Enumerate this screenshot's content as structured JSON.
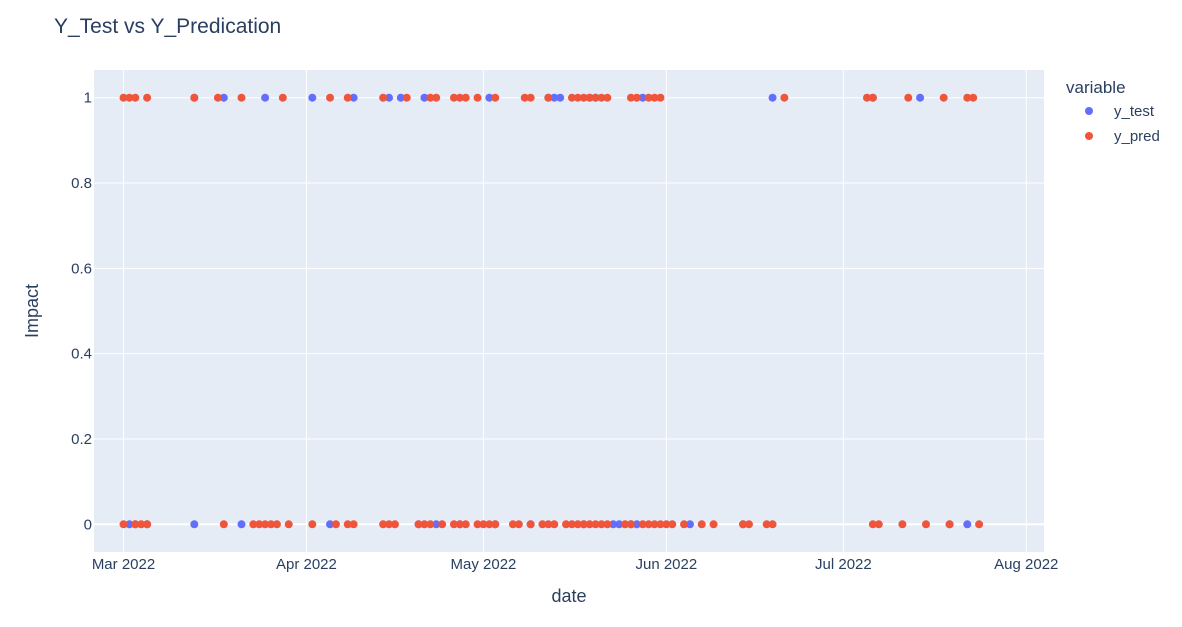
{
  "chart_data": {
    "type": "scatter",
    "title": "Y_Test vs Y_Predication",
    "xlabel": "date",
    "ylabel": "Impact",
    "xlim": [
      "2022-02-24",
      "2022-08-04"
    ],
    "ylim": [
      -0.065,
      1.065
    ],
    "x_ticks": [
      {
        "date": "2022-03-01",
        "label": "Mar 2022"
      },
      {
        "date": "2022-04-01",
        "label": "Apr 2022"
      },
      {
        "date": "2022-05-01",
        "label": "May 2022"
      },
      {
        "date": "2022-06-01",
        "label": "Jun 2022"
      },
      {
        "date": "2022-07-01",
        "label": "Jul 2022"
      },
      {
        "date": "2022-08-01",
        "label": "Aug 2022"
      }
    ],
    "y_ticks": [
      {
        "value": 0,
        "label": "0"
      },
      {
        "value": 0.2,
        "label": "0.2"
      },
      {
        "value": 0.4,
        "label": "0.4"
      },
      {
        "value": 0.6,
        "label": "0.6"
      },
      {
        "value": 0.8,
        "label": "0.8"
      },
      {
        "value": 1,
        "label": "1"
      }
    ],
    "grid": true,
    "legend": {
      "title": "variable",
      "placement": "top-right"
    },
    "series": [
      {
        "name": "y_test",
        "color": "#636efa",
        "points": [
          {
            "x": "2022-03-02",
            "y": 0
          },
          {
            "x": "2022-03-03",
            "y": 0
          },
          {
            "x": "2022-03-05",
            "y": 0
          },
          {
            "x": "2022-03-13",
            "y": 1
          },
          {
            "x": "2022-03-13",
            "y": 0
          },
          {
            "x": "2022-03-18",
            "y": 1
          },
          {
            "x": "2022-03-21",
            "y": 0
          },
          {
            "x": "2022-03-25",
            "y": 1
          },
          {
            "x": "2022-04-02",
            "y": 1
          },
          {
            "x": "2022-04-05",
            "y": 0
          },
          {
            "x": "2022-04-09",
            "y": 1
          },
          {
            "x": "2022-04-15",
            "y": 1
          },
          {
            "x": "2022-04-17",
            "y": 1
          },
          {
            "x": "2022-04-20",
            "y": 0
          },
          {
            "x": "2022-04-21",
            "y": 1
          },
          {
            "x": "2022-04-23",
            "y": 0
          },
          {
            "x": "2022-04-27",
            "y": 0
          },
          {
            "x": "2022-05-02",
            "y": 1
          },
          {
            "x": "2022-05-03",
            "y": 0
          },
          {
            "x": "2022-05-09",
            "y": 0
          },
          {
            "x": "2022-05-12",
            "y": 1
          },
          {
            "x": "2022-05-13",
            "y": 1
          },
          {
            "x": "2022-05-14",
            "y": 1
          },
          {
            "x": "2022-05-18",
            "y": 0
          },
          {
            "x": "2022-05-19",
            "y": 1
          },
          {
            "x": "2022-05-20",
            "y": 1
          },
          {
            "x": "2022-05-23",
            "y": 0
          },
          {
            "x": "2022-05-24",
            "y": 0
          },
          {
            "x": "2022-05-26",
            "y": 0
          },
          {
            "x": "2022-05-27",
            "y": 0
          },
          {
            "x": "2022-05-28",
            "y": 1
          },
          {
            "x": "2022-06-05",
            "y": 0
          },
          {
            "x": "2022-06-14",
            "y": 0
          },
          {
            "x": "2022-06-19",
            "y": 1
          },
          {
            "x": "2022-07-06",
            "y": 1
          },
          {
            "x": "2022-07-14",
            "y": 1
          },
          {
            "x": "2022-07-19",
            "y": 0
          },
          {
            "x": "2022-07-22",
            "y": 0
          }
        ]
      },
      {
        "name": "y_pred",
        "color": "#ef553b",
        "points": [
          {
            "x": "2022-03-01",
            "y": 1
          },
          {
            "x": "2022-03-02",
            "y": 1
          },
          {
            "x": "2022-03-03",
            "y": 1
          },
          {
            "x": "2022-03-05",
            "y": 1
          },
          {
            "x": "2022-03-13",
            "y": 1
          },
          {
            "x": "2022-03-17",
            "y": 1
          },
          {
            "x": "2022-03-21",
            "y": 1
          },
          {
            "x": "2022-03-28",
            "y": 1
          },
          {
            "x": "2022-04-05",
            "y": 1
          },
          {
            "x": "2022-04-08",
            "y": 1
          },
          {
            "x": "2022-04-14",
            "y": 1
          },
          {
            "x": "2022-04-18",
            "y": 1
          },
          {
            "x": "2022-04-22",
            "y": 1
          },
          {
            "x": "2022-04-23",
            "y": 1
          },
          {
            "x": "2022-04-26",
            "y": 1
          },
          {
            "x": "2022-04-27",
            "y": 1
          },
          {
            "x": "2022-04-28",
            "y": 1
          },
          {
            "x": "2022-04-30",
            "y": 1
          },
          {
            "x": "2022-05-03",
            "y": 1
          },
          {
            "x": "2022-05-08",
            "y": 1
          },
          {
            "x": "2022-05-09",
            "y": 1
          },
          {
            "x": "2022-05-12",
            "y": 1
          },
          {
            "x": "2022-05-16",
            "y": 1
          },
          {
            "x": "2022-05-17",
            "y": 1
          },
          {
            "x": "2022-05-18",
            "y": 1
          },
          {
            "x": "2022-05-19",
            "y": 1
          },
          {
            "x": "2022-05-20",
            "y": 1
          },
          {
            "x": "2022-05-21",
            "y": 1
          },
          {
            "x": "2022-05-22",
            "y": 1
          },
          {
            "x": "2022-05-26",
            "y": 1
          },
          {
            "x": "2022-05-27",
            "y": 1
          },
          {
            "x": "2022-05-29",
            "y": 1
          },
          {
            "x": "2022-05-30",
            "y": 1
          },
          {
            "x": "2022-05-31",
            "y": 1
          },
          {
            "x": "2022-06-21",
            "y": 1
          },
          {
            "x": "2022-07-05",
            "y": 1
          },
          {
            "x": "2022-07-06",
            "y": 1
          },
          {
            "x": "2022-07-12",
            "y": 1
          },
          {
            "x": "2022-07-18",
            "y": 1
          },
          {
            "x": "2022-07-22",
            "y": 1
          },
          {
            "x": "2022-07-23",
            "y": 1
          },
          {
            "x": "2022-03-01",
            "y": 0
          },
          {
            "x": "2022-03-03",
            "y": 0
          },
          {
            "x": "2022-03-04",
            "y": 0
          },
          {
            "x": "2022-03-05",
            "y": 0
          },
          {
            "x": "2022-03-18",
            "y": 0
          },
          {
            "x": "2022-03-23",
            "y": 0
          },
          {
            "x": "2022-03-24",
            "y": 0
          },
          {
            "x": "2022-03-25",
            "y": 0
          },
          {
            "x": "2022-03-26",
            "y": 0
          },
          {
            "x": "2022-03-27",
            "y": 0
          },
          {
            "x": "2022-03-29",
            "y": 0
          },
          {
            "x": "2022-04-02",
            "y": 0
          },
          {
            "x": "2022-04-06",
            "y": 0
          },
          {
            "x": "2022-04-08",
            "y": 0
          },
          {
            "x": "2022-04-09",
            "y": 0
          },
          {
            "x": "2022-04-14",
            "y": 0
          },
          {
            "x": "2022-04-15",
            "y": 0
          },
          {
            "x": "2022-04-16",
            "y": 0
          },
          {
            "x": "2022-04-20",
            "y": 0
          },
          {
            "x": "2022-04-21",
            "y": 0
          },
          {
            "x": "2022-04-22",
            "y": 0
          },
          {
            "x": "2022-04-24",
            "y": 0
          },
          {
            "x": "2022-04-26",
            "y": 0
          },
          {
            "x": "2022-04-27",
            "y": 0
          },
          {
            "x": "2022-04-28",
            "y": 0
          },
          {
            "x": "2022-04-30",
            "y": 0
          },
          {
            "x": "2022-05-01",
            "y": 0
          },
          {
            "x": "2022-05-02",
            "y": 0
          },
          {
            "x": "2022-05-03",
            "y": 0
          },
          {
            "x": "2022-05-06",
            "y": 0
          },
          {
            "x": "2022-05-07",
            "y": 0
          },
          {
            "x": "2022-05-09",
            "y": 0
          },
          {
            "x": "2022-05-11",
            "y": 0
          },
          {
            "x": "2022-05-12",
            "y": 0
          },
          {
            "x": "2022-05-13",
            "y": 0
          },
          {
            "x": "2022-05-15",
            "y": 0
          },
          {
            "x": "2022-05-16",
            "y": 0
          },
          {
            "x": "2022-05-17",
            "y": 0
          },
          {
            "x": "2022-05-18",
            "y": 0
          },
          {
            "x": "2022-05-19",
            "y": 0
          },
          {
            "x": "2022-05-20",
            "y": 0
          },
          {
            "x": "2022-05-21",
            "y": 0
          },
          {
            "x": "2022-05-22",
            "y": 0
          },
          {
            "x": "2022-05-25",
            "y": 0
          },
          {
            "x": "2022-05-26",
            "y": 0
          },
          {
            "x": "2022-05-28",
            "y": 0
          },
          {
            "x": "2022-05-29",
            "y": 0
          },
          {
            "x": "2022-05-30",
            "y": 0
          },
          {
            "x": "2022-05-31",
            "y": 0
          },
          {
            "x": "2022-06-01",
            "y": 0
          },
          {
            "x": "2022-06-02",
            "y": 0
          },
          {
            "x": "2022-06-04",
            "y": 0
          },
          {
            "x": "2022-06-07",
            "y": 0
          },
          {
            "x": "2022-06-09",
            "y": 0
          },
          {
            "x": "2022-06-14",
            "y": 0
          },
          {
            "x": "2022-06-15",
            "y": 0
          },
          {
            "x": "2022-06-18",
            "y": 0
          },
          {
            "x": "2022-06-19",
            "y": 0
          },
          {
            "x": "2022-07-06",
            "y": 0
          },
          {
            "x": "2022-07-07",
            "y": 0
          },
          {
            "x": "2022-07-11",
            "y": 0
          },
          {
            "x": "2022-07-15",
            "y": 0
          },
          {
            "x": "2022-07-19",
            "y": 0
          },
          {
            "x": "2022-07-24",
            "y": 0
          }
        ]
      }
    ]
  }
}
